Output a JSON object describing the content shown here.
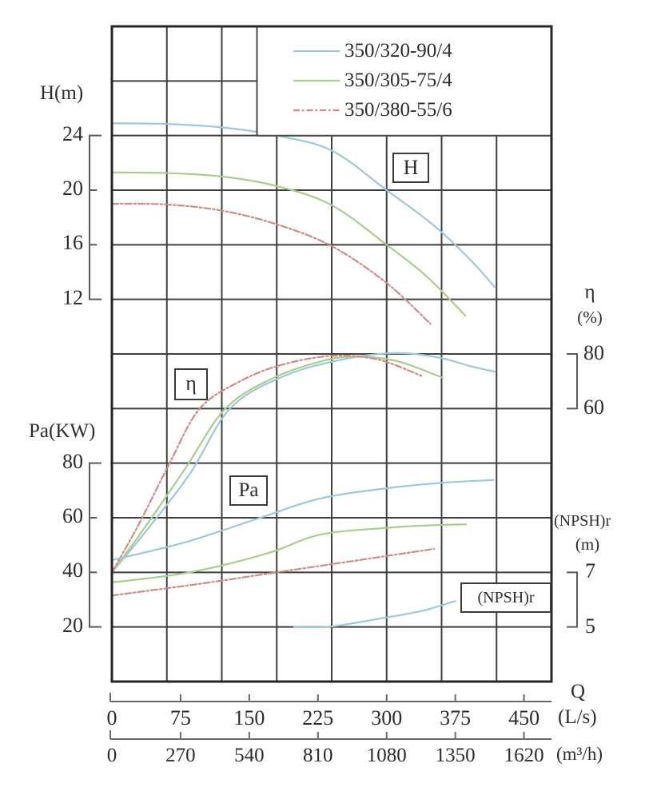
{
  "colors": {
    "blue": "#9cc7dd",
    "green": "#a6cf8b",
    "red": "#d28a84",
    "grid": "#3f3f3f",
    "border": "#262626",
    "axis": "#6a6a6a",
    "text": "#2d2d2d"
  },
  "legend": {
    "items": [
      {
        "label": "350/320-90/4",
        "color_key": "blue",
        "dash": "solid"
      },
      {
        "label": "350/305-75/4",
        "color_key": "green",
        "dash": "solid"
      },
      {
        "label": "350/380-55/6",
        "color_key": "red",
        "dash": "dashdot"
      }
    ]
  },
  "axis_labels": {
    "h": "H(m)",
    "pa": "Pa(KW)",
    "eta": "η",
    "eta_unit": "(%)",
    "npsh": "(NPSH)r",
    "npsh_unit": "(m)",
    "q": "Q",
    "q_unit_ls": "(L/s)",
    "q_unit_m3h": "(m³/h)"
  },
  "ticks": {
    "h": [
      "24",
      "20",
      "16",
      "12"
    ],
    "pa": [
      "80",
      "60",
      "40",
      "20"
    ],
    "eta": [
      "80",
      "60"
    ],
    "npsh": [
      "7",
      "5"
    ],
    "q_ls": [
      "0",
      "75",
      "150",
      "225",
      "300",
      "375",
      "450"
    ],
    "q_m3h": [
      "0",
      "270",
      "540",
      "810",
      "1080",
      "1350",
      "1620"
    ]
  },
  "annotations": {
    "h": "H",
    "eta": "η",
    "pa": "Pa",
    "npsh": "(NPSH)r"
  },
  "chart_data": {
    "type": "line",
    "x_label": "Q",
    "x_units": [
      "L/s",
      "m³/h"
    ],
    "x_range_ls": [
      0,
      480
    ],
    "pump_models": [
      "350/320-90/4",
      "350/305-75/4",
      "350/380-55/6"
    ],
    "groups": [
      {
        "quantity": "H",
        "unit": "m",
        "axis_ticks": [
          24,
          20,
          16,
          12
        ],
        "series": [
          {
            "model": "350/320-90/4",
            "color_key": "blue",
            "points": [
              [
                0,
                24.9
              ],
              [
                60,
                24.85
              ],
              [
                120,
                24.6
              ],
              [
                180,
                24.0
              ],
              [
                240,
                22.9
              ],
              [
                300,
                20.0
              ],
              [
                350,
                17.5
              ],
              [
                390,
                15.0
              ],
              [
                418,
                12.9
              ]
            ]
          },
          {
            "model": "350/305-75/4",
            "color_key": "green",
            "points": [
              [
                0,
                21.3
              ],
              [
                60,
                21.25
              ],
              [
                120,
                21.0
              ],
              [
                180,
                20.3
              ],
              [
                240,
                18.9
              ],
              [
                300,
                16.0
              ],
              [
                345,
                13.6
              ],
              [
                386,
                10.8
              ]
            ]
          },
          {
            "model": "350/380-55/6",
            "color_key": "red",
            "points": [
              [
                0,
                19.0
              ],
              [
                60,
                18.95
              ],
              [
                120,
                18.5
              ],
              [
                180,
                17.5
              ],
              [
                240,
                15.9
              ],
              [
                300,
                13.2
              ],
              [
                348,
                10.2
              ]
            ]
          }
        ]
      },
      {
        "quantity": "η",
        "unit": "%",
        "axis_ticks": [
          80,
          60
        ],
        "series": [
          {
            "model": "350/320-90/4",
            "color_key": "blue",
            "points": [
              [
                0,
                0
              ],
              [
                37,
                15
              ],
              [
                85,
                36
              ],
              [
                129,
                60
              ],
              [
                185,
                71.5
              ],
              [
                245,
                77.5
              ],
              [
                306,
                80.3
              ],
              [
                355,
                78.8
              ],
              [
                392,
                75.5
              ],
              [
                418,
                73.5
              ]
            ]
          },
          {
            "model": "350/305-75/4",
            "color_key": "green",
            "points": [
              [
                0,
                0
              ],
              [
                35,
                16
              ],
              [
                80,
                38
              ],
              [
                124,
                60
              ],
              [
                175,
                71
              ],
              [
                225,
                77
              ],
              [
                262,
                79
              ],
              [
                310,
                77.5
              ],
              [
                361,
                71.3
              ]
            ]
          },
          {
            "model": "350/380-55/6",
            "color_key": "red",
            "points": [
              [
                0,
                0
              ],
              [
                30,
                18
              ],
              [
                63,
                40
              ],
              [
                96,
                60
              ],
              [
                140,
                70
              ],
              [
                185,
                76
              ],
              [
                240,
                79.3
              ],
              [
                290,
                78
              ],
              [
                338,
                72
              ]
            ]
          }
        ]
      },
      {
        "quantity": "Pa",
        "unit": "KW",
        "axis_ticks": [
          80,
          60,
          40,
          20
        ],
        "series": [
          {
            "model": "350/320-90/4",
            "color_key": "blue",
            "points": [
              [
                0,
                44.5
              ],
              [
                80,
                51
              ],
              [
                162,
                60
              ],
              [
                227,
                67
              ],
              [
                300,
                70.8
              ],
              [
                360,
                72.8
              ],
              [
                417,
                73.8
              ]
            ]
          },
          {
            "model": "350/305-75/4",
            "color_key": "green",
            "points": [
              [
                0,
                36.3
              ],
              [
                85,
                40
              ],
              [
                170,
                47
              ],
              [
                227,
                53.8
              ],
              [
                300,
                56.3
              ],
              [
                345,
                57.2
              ],
              [
                387,
                57.6
              ]
            ]
          },
          {
            "model": "350/380-55/6",
            "color_key": "red",
            "points": [
              [
                0,
                31.5
              ],
              [
                100,
                36
              ],
              [
                170,
                39.5
              ],
              [
                230,
                42.5
              ],
              [
                300,
                46
              ],
              [
                352,
                48.6
              ]
            ]
          }
        ]
      },
      {
        "quantity": "(NPSH)r",
        "unit": "m",
        "axis_ticks": [
          7,
          5
        ],
        "series": [
          {
            "model": "350/320-90/4",
            "color_key": "blue",
            "points": [
              [
                199,
                5.0
              ],
              [
                240,
                5.02
              ],
              [
                300,
                5.35
              ],
              [
                340,
                5.6
              ],
              [
                375,
                5.95
              ]
            ]
          }
        ]
      }
    ]
  }
}
